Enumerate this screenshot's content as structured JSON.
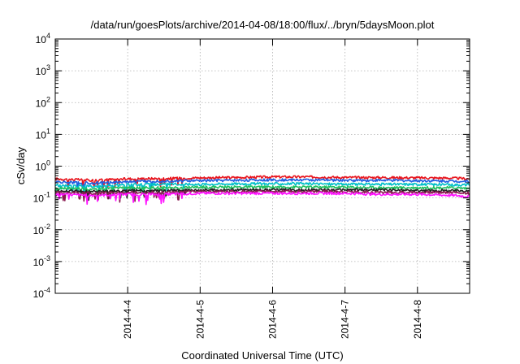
{
  "chart_data": {
    "type": "line",
    "title": "/data/run/goesPlots/archive/2014-04-08/18:00/flux/../bryn/5daysMoon.plot",
    "xlabel": "Coordinated Universal Time (UTC)",
    "ylabel": "cSv/day",
    "yscale": "log",
    "ylim": [
      0.0001,
      10000
    ],
    "xlim": [
      0,
      5.72
    ],
    "grid": true,
    "legend": "none",
    "x_ticks": [
      {
        "x": 1,
        "label": "2014-4-4"
      },
      {
        "x": 2,
        "label": "2014-4-5"
      },
      {
        "x": 3,
        "label": "2014-4-6"
      },
      {
        "x": 4,
        "label": "2014-4-7"
      },
      {
        "x": 5,
        "label": "2014-4-8"
      }
    ],
    "y_ticks": [
      {
        "base": "10",
        "exp": "-4"
      },
      {
        "base": "10",
        "exp": "-3"
      },
      {
        "base": "10",
        "exp": "-2"
      },
      {
        "base": "10",
        "exp": "-1"
      },
      {
        "base": "10",
        "exp": "0"
      },
      {
        "base": "10",
        "exp": "1"
      },
      {
        "base": "10",
        "exp": "2"
      },
      {
        "base": "10",
        "exp": "3"
      },
      {
        "base": "10",
        "exp": "4"
      }
    ],
    "series": [
      {
        "color": "#e8141c",
        "x": [
          0,
          0.5,
          1,
          1.5,
          2,
          2.5,
          3,
          3.5,
          4,
          4.5,
          5,
          5.5,
          5.72
        ],
        "values": [
          0.4,
          0.36,
          0.4,
          0.41,
          0.43,
          0.44,
          0.46,
          0.46,
          0.44,
          0.44,
          0.43,
          0.42,
          0.4
        ]
      },
      {
        "color": "#1f5fe0",
        "x": [
          0,
          0.5,
          1,
          1.5,
          2,
          2.5,
          3,
          3.5,
          4,
          4.5,
          5,
          5.5,
          5.72
        ],
        "values": [
          0.32,
          0.29,
          0.33,
          0.34,
          0.35,
          0.36,
          0.37,
          0.37,
          0.36,
          0.36,
          0.35,
          0.34,
          0.33
        ]
      },
      {
        "color": "#00c0c8",
        "x": [
          0,
          0.5,
          1,
          1.5,
          2,
          2.5,
          3,
          3.5,
          4,
          4.5,
          5,
          5.5,
          5.72
        ],
        "values": [
          0.25,
          0.23,
          0.26,
          0.27,
          0.27,
          0.28,
          0.28,
          0.28,
          0.27,
          0.27,
          0.27,
          0.26,
          0.26
        ]
      },
      {
        "color": "#20c060",
        "x": [
          0,
          0.5,
          1,
          1.5,
          2,
          2.5,
          3,
          3.5,
          4,
          4.5,
          5,
          5.5,
          5.72
        ],
        "values": [
          0.2,
          0.19,
          0.21,
          0.21,
          0.22,
          0.22,
          0.22,
          0.22,
          0.22,
          0.21,
          0.21,
          0.21,
          0.2
        ]
      },
      {
        "color": "#202020",
        "x": [
          0,
          0.5,
          1,
          1.5,
          2,
          2.5,
          3,
          3.5,
          4,
          4.5,
          5,
          5.5,
          5.72
        ],
        "values": [
          0.17,
          0.16,
          0.17,
          0.17,
          0.18,
          0.18,
          0.18,
          0.18,
          0.18,
          0.18,
          0.17,
          0.17,
          0.17
        ]
      },
      {
        "color": "#8a1a50",
        "x": [
          0,
          0.5,
          1,
          1.5,
          2,
          2.5,
          3,
          3.5,
          4,
          4.5,
          5,
          5.5,
          5.72
        ],
        "values": [
          0.15,
          0.14,
          0.15,
          0.15,
          0.16,
          0.16,
          0.16,
          0.16,
          0.16,
          0.15,
          0.15,
          0.15,
          0.14
        ]
      },
      {
        "color": "#ff10ff",
        "x": [
          0,
          0.5,
          1,
          1.5,
          2,
          2.5,
          3,
          3.5,
          4,
          4.5,
          5,
          5.5,
          5.72
        ],
        "values": [
          0.13,
          0.12,
          0.13,
          0.13,
          0.14,
          0.14,
          0.14,
          0.14,
          0.14,
          0.13,
          0.13,
          0.12,
          0.11
        ]
      }
    ]
  }
}
